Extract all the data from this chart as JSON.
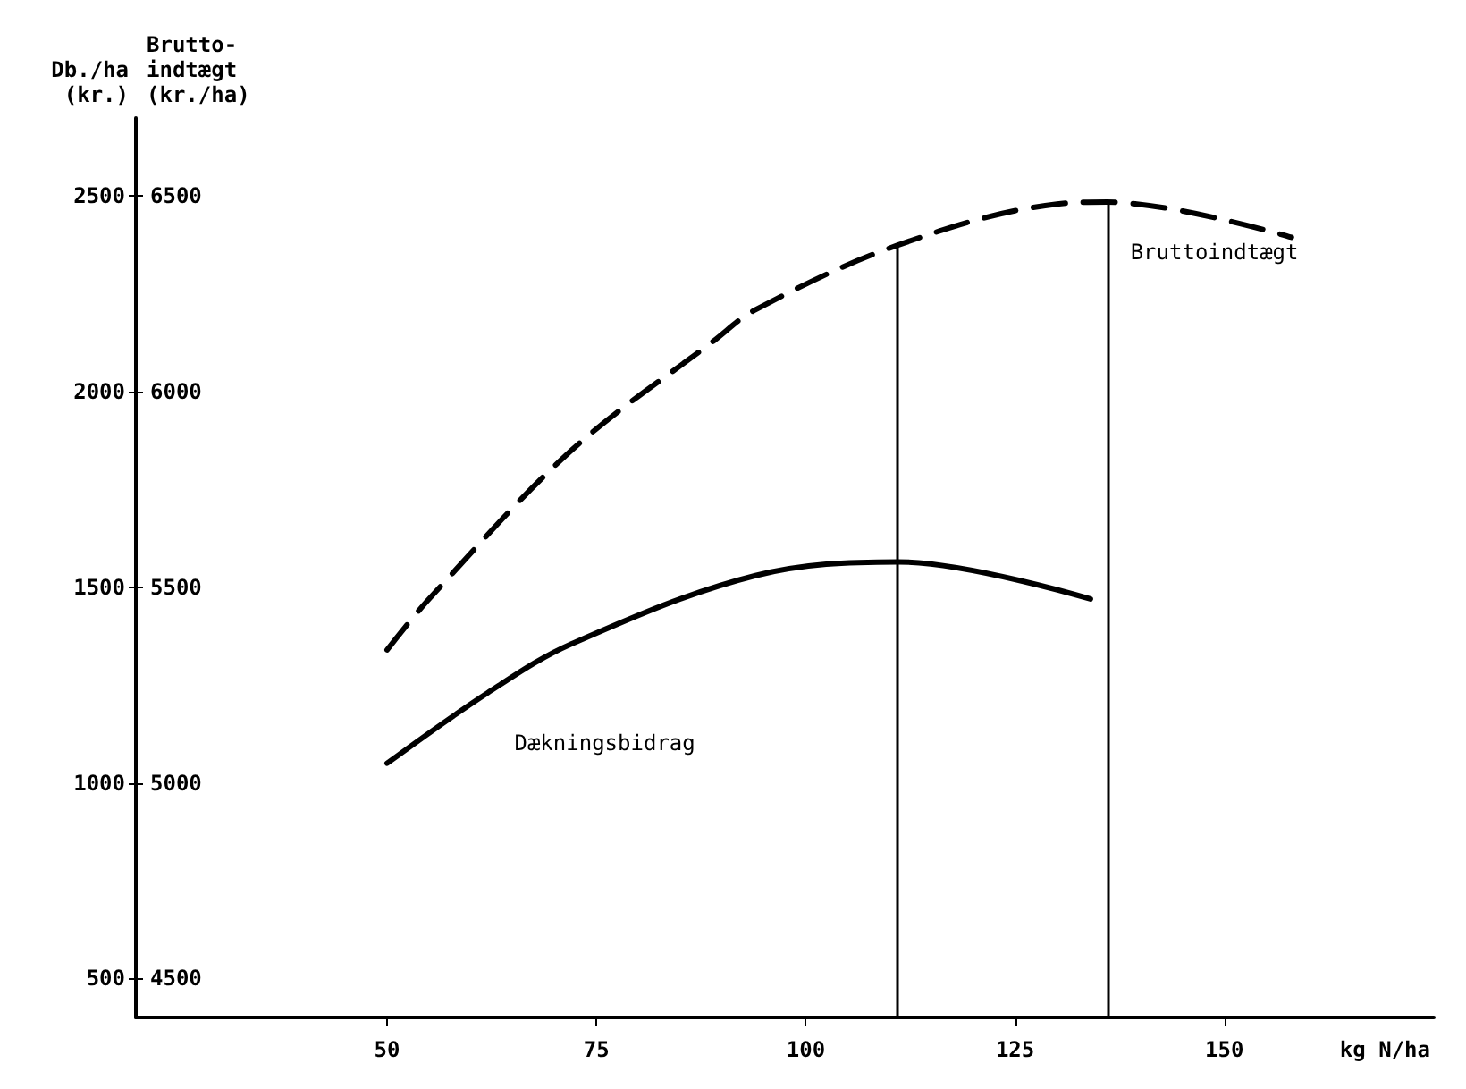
{
  "chart_data": {
    "type": "line",
    "xlabel": "kg N/ha",
    "ylabel": "Db./ha\n(kr.)",
    "y2label": "Brutto-\nindtægt\n(kr./ha)",
    "xlim": [
      20,
      175
    ],
    "xticks": [
      50,
      75,
      100,
      125,
      150
    ],
    "ylim": [
      400,
      2700
    ],
    "yticks": [
      500,
      1000,
      1500,
      2000,
      2500
    ],
    "y2lim": [
      4400,
      6700
    ],
    "y2ticks": [
      4500,
      5000,
      5500,
      6000,
      6500
    ],
    "grid": false,
    "marker": "none",
    "series": [
      {
        "name": "Dækningsbidrag",
        "color": "#000000",
        "line_style": "solid",
        "axis": "y",
        "x": [
          50,
          62,
          72,
          94,
          111,
          134
        ],
        "values": [
          1050,
          1230,
          1355,
          1530,
          1565,
          1470
        ]
      },
      {
        "name": "Bruttoindtægt",
        "color": "#000000",
        "line_style": "dashed",
        "axis": "y2",
        "x": [
          50,
          55,
          72,
          89,
          94,
          111,
          130,
          136,
          158
        ],
        "values": [
          5340,
          5470,
          5850,
          6130,
          6210,
          6375,
          6480,
          6485,
          6395
        ]
      }
    ],
    "ref_lines": [
      {
        "axis": "x",
        "value": 111,
        "color": "#000000",
        "line_style": "solid"
      },
      {
        "axis": "x",
        "value": 136,
        "color": "#000000",
        "line_style": "solid"
      }
    ]
  }
}
